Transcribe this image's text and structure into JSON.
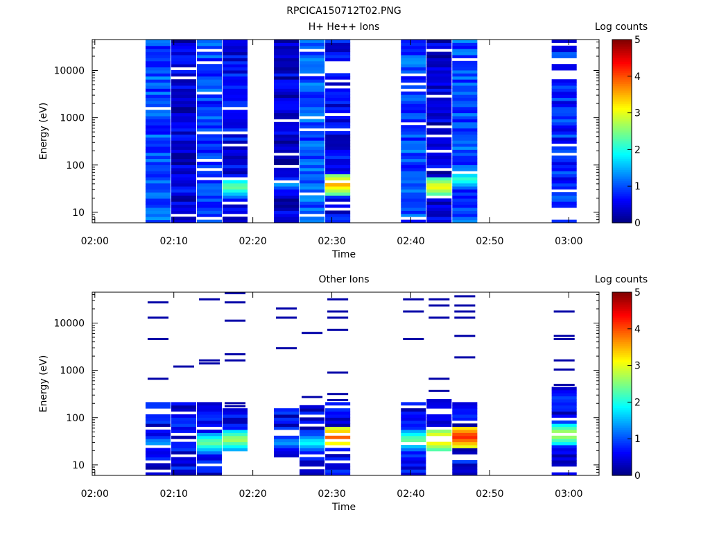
{
  "figure": {
    "title": "RPCICA150712T02.PNG"
  },
  "chart_data": [
    {
      "type": "heatmap",
      "title": "H+ He++ Ions",
      "xlabel": "Time",
      "ylabel": "Energy (eV)",
      "yscale": "log",
      "xlim": [
        "01:59:40",
        "03:03:50"
      ],
      "ylim": [
        6,
        45000
      ],
      "x_ticks": [
        "02:00",
        "02:10",
        "02:20",
        "02:30",
        "02:40",
        "02:50",
        "03:00"
      ],
      "y_ticks": [
        "10",
        "100",
        "1000",
        "10000"
      ],
      "colorbar": {
        "label": "Log counts",
        "range": [
          0,
          5
        ],
        "ticks": [
          "0",
          "1",
          "2",
          "3",
          "4",
          "5"
        ]
      },
      "grid": false,
      "columns": [
        {
          "start": "02:06:25",
          "end": "02:09:35",
          "dominant_log_counts": 1.0,
          "low_energy_peak": {
            "energy": 10,
            "log_counts": 1.0
          }
        },
        {
          "start": "02:09:40",
          "end": "02:12:50",
          "dominant_log_counts": 0.4,
          "low_energy_peak": {
            "energy": 30,
            "log_counts": 1.0
          }
        },
        {
          "start": "02:12:55",
          "end": "02:16:05",
          "dominant_log_counts": 0.9,
          "low_energy_peak": {
            "energy": 40,
            "log_counts": 1.0
          }
        },
        {
          "start": "02:16:10",
          "end": "02:19:20",
          "dominant_log_counts": 0.6,
          "low_energy_peak": {
            "energy": 35,
            "log_counts": 2.5
          }
        },
        {
          "start": "02:22:40",
          "end": "02:25:50",
          "dominant_log_counts": 0.4,
          "low_energy_peak": {
            "energy": 40,
            "log_counts": 1.5
          }
        },
        {
          "start": "02:25:55",
          "end": "02:29:05",
          "dominant_log_counts": 1.0,
          "low_energy_peak": {
            "energy": 35,
            "log_counts": 1.5
          }
        },
        {
          "start": "02:29:10",
          "end": "02:32:20",
          "dominant_log_counts": 0.6,
          "low_energy_peak": {
            "energy": 40,
            "log_counts": 3.6
          }
        },
        {
          "start": "02:38:45",
          "end": "02:41:55",
          "dominant_log_counts": 1.0,
          "low_energy_peak": {
            "energy": 25,
            "log_counts": 1.0
          }
        },
        {
          "start": "02:42:00",
          "end": "02:45:10",
          "dominant_log_counts": 0.4,
          "low_energy_peak": {
            "energy": 35,
            "log_counts": 3.2
          }
        },
        {
          "start": "02:45:15",
          "end": "02:48:25",
          "dominant_log_counts": 1.0,
          "low_energy_peak": {
            "energy": 50,
            "log_counts": 2.2
          }
        },
        {
          "start": "02:57:50",
          "end": "03:01:00",
          "dominant_log_counts": 0.8,
          "low_energy_peak": {
            "energy": 20,
            "log_counts": 1.3
          }
        }
      ]
    },
    {
      "type": "heatmap",
      "title": "Other Ions",
      "xlabel": "Time",
      "ylabel": "Energy (eV)",
      "yscale": "log",
      "xlim": [
        "01:59:40",
        "03:03:50"
      ],
      "ylim": [
        6,
        45000
      ],
      "x_ticks": [
        "02:00",
        "02:10",
        "02:20",
        "02:30",
        "02:40",
        "02:50",
        "03:00"
      ],
      "y_ticks": [
        "10",
        "100",
        "1000",
        "10000"
      ],
      "colorbar": {
        "label": "Log counts",
        "range": [
          0,
          5
        ],
        "ticks": [
          "0",
          "1",
          "2",
          "3",
          "4",
          "5"
        ]
      },
      "grid": false,
      "columns": [
        {
          "start": "02:06:25",
          "end": "02:09:35",
          "energy_range": [
            6,
            200
          ],
          "peak": {
            "energy": 30,
            "log_counts": 1.5
          }
        },
        {
          "start": "02:09:40",
          "end": "02:12:50",
          "energy_range": [
            6,
            200
          ],
          "peak": {
            "energy": 25,
            "log_counts": 0.8
          }
        },
        {
          "start": "02:12:55",
          "end": "02:16:05",
          "energy_range": [
            6,
            200
          ],
          "peak": {
            "energy": 30,
            "log_counts": 2.5
          }
        },
        {
          "start": "02:16:10",
          "end": "02:19:20",
          "energy_range": [
            20,
            160
          ],
          "peak": {
            "energy": 35,
            "log_counts": 2.8
          }
        },
        {
          "start": "02:22:40",
          "end": "02:25:50",
          "energy_range": [
            15,
            160
          ],
          "peak": {
            "energy": 30,
            "log_counts": 1.5
          }
        },
        {
          "start": "02:25:55",
          "end": "02:29:05",
          "energy_range": [
            6,
            200
          ],
          "peak": {
            "energy": 30,
            "log_counts": 2.0
          }
        },
        {
          "start": "02:29:10",
          "end": "02:32:20",
          "energy_range": [
            6,
            200
          ],
          "peak": {
            "energy": 40,
            "log_counts": 4.0
          }
        },
        {
          "start": "02:38:45",
          "end": "02:41:55",
          "energy_range": [
            6,
            220
          ],
          "peak": {
            "energy": 35,
            "log_counts": 2.5
          }
        },
        {
          "start": "02:42:00",
          "end": "02:45:10",
          "energy_range": [
            20,
            230
          ],
          "peak": {
            "energy": 35,
            "log_counts": 3.6
          }
        },
        {
          "start": "02:45:15",
          "end": "02:48:25",
          "energy_range": [
            6,
            220
          ],
          "peak": {
            "energy": 40,
            "log_counts": 4.3
          }
        },
        {
          "start": "02:57:50",
          "end": "03:01:00",
          "energy_range": [
            6,
            450
          ],
          "peak": {
            "energy": 45,
            "log_counts": 3.0
          }
        }
      ]
    }
  ]
}
